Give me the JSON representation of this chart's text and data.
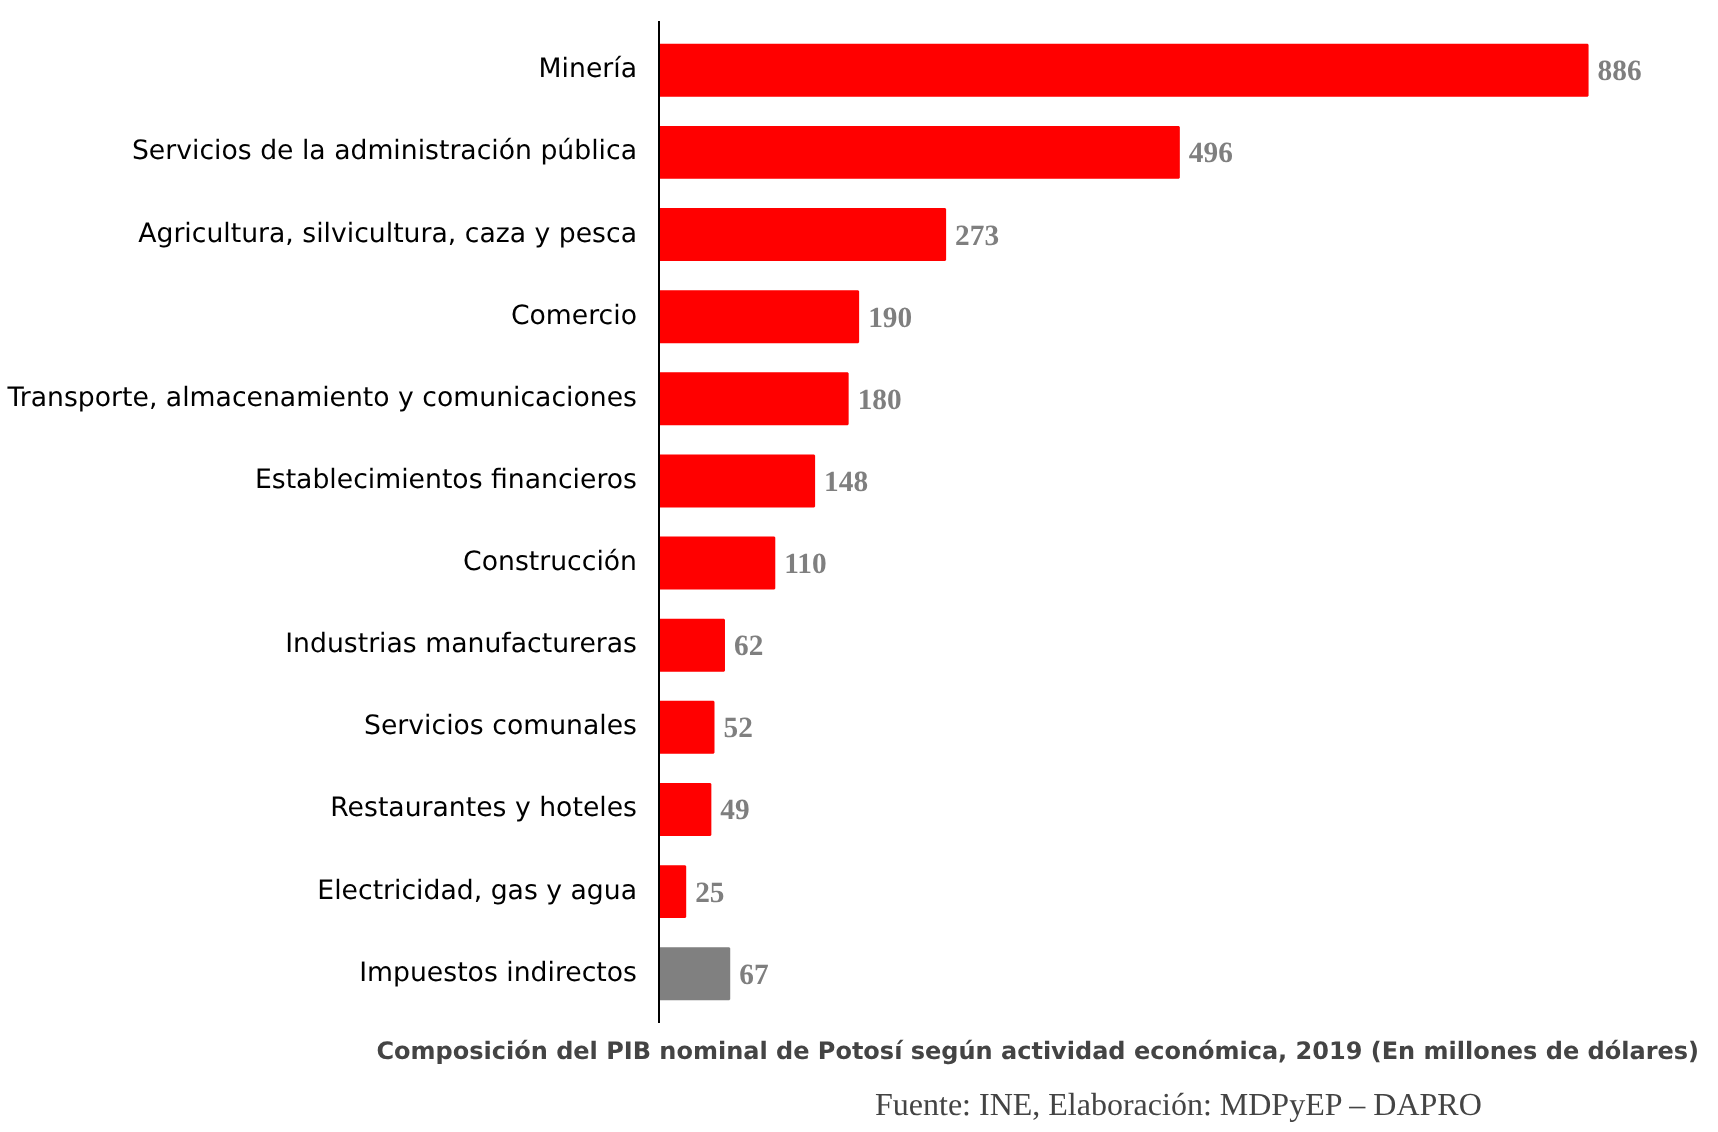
{
  "chart_data": {
    "type": "bar",
    "orientation": "horizontal",
    "title": "Composición del PIB nominal de Potosí según actividad económica, 2019 (En millones de dólares)",
    "annotations": [
      "Fuente: INE, Elaboración: MDPyEP – DAPRO"
    ],
    "categories": [
      "Minería",
      "Servicios de la administración pública",
      "Agricultura, silvicultura, caza y pesca",
      "Comercio",
      "Transporte, almacenamiento y comunicaciones",
      "Establecimientos financieros",
      "Construcción",
      "Industrias manufactureras",
      "Servicios comunales",
      "Restaurantes y hoteles",
      "Electricidad, gas y agua",
      "Impuestos indirectos"
    ],
    "values": [
      886,
      496,
      273,
      190,
      180,
      148,
      110,
      62,
      52,
      49,
      25,
      67
    ],
    "colors": [
      "#ff0000",
      "#ff0000",
      "#ff0000",
      "#ff0000",
      "#ff0000",
      "#ff0000",
      "#ff0000",
      "#ff0000",
      "#ff0000",
      "#ff0000",
      "#ff0000",
      "#808080"
    ],
    "data_labels": true,
    "grid": false
  }
}
